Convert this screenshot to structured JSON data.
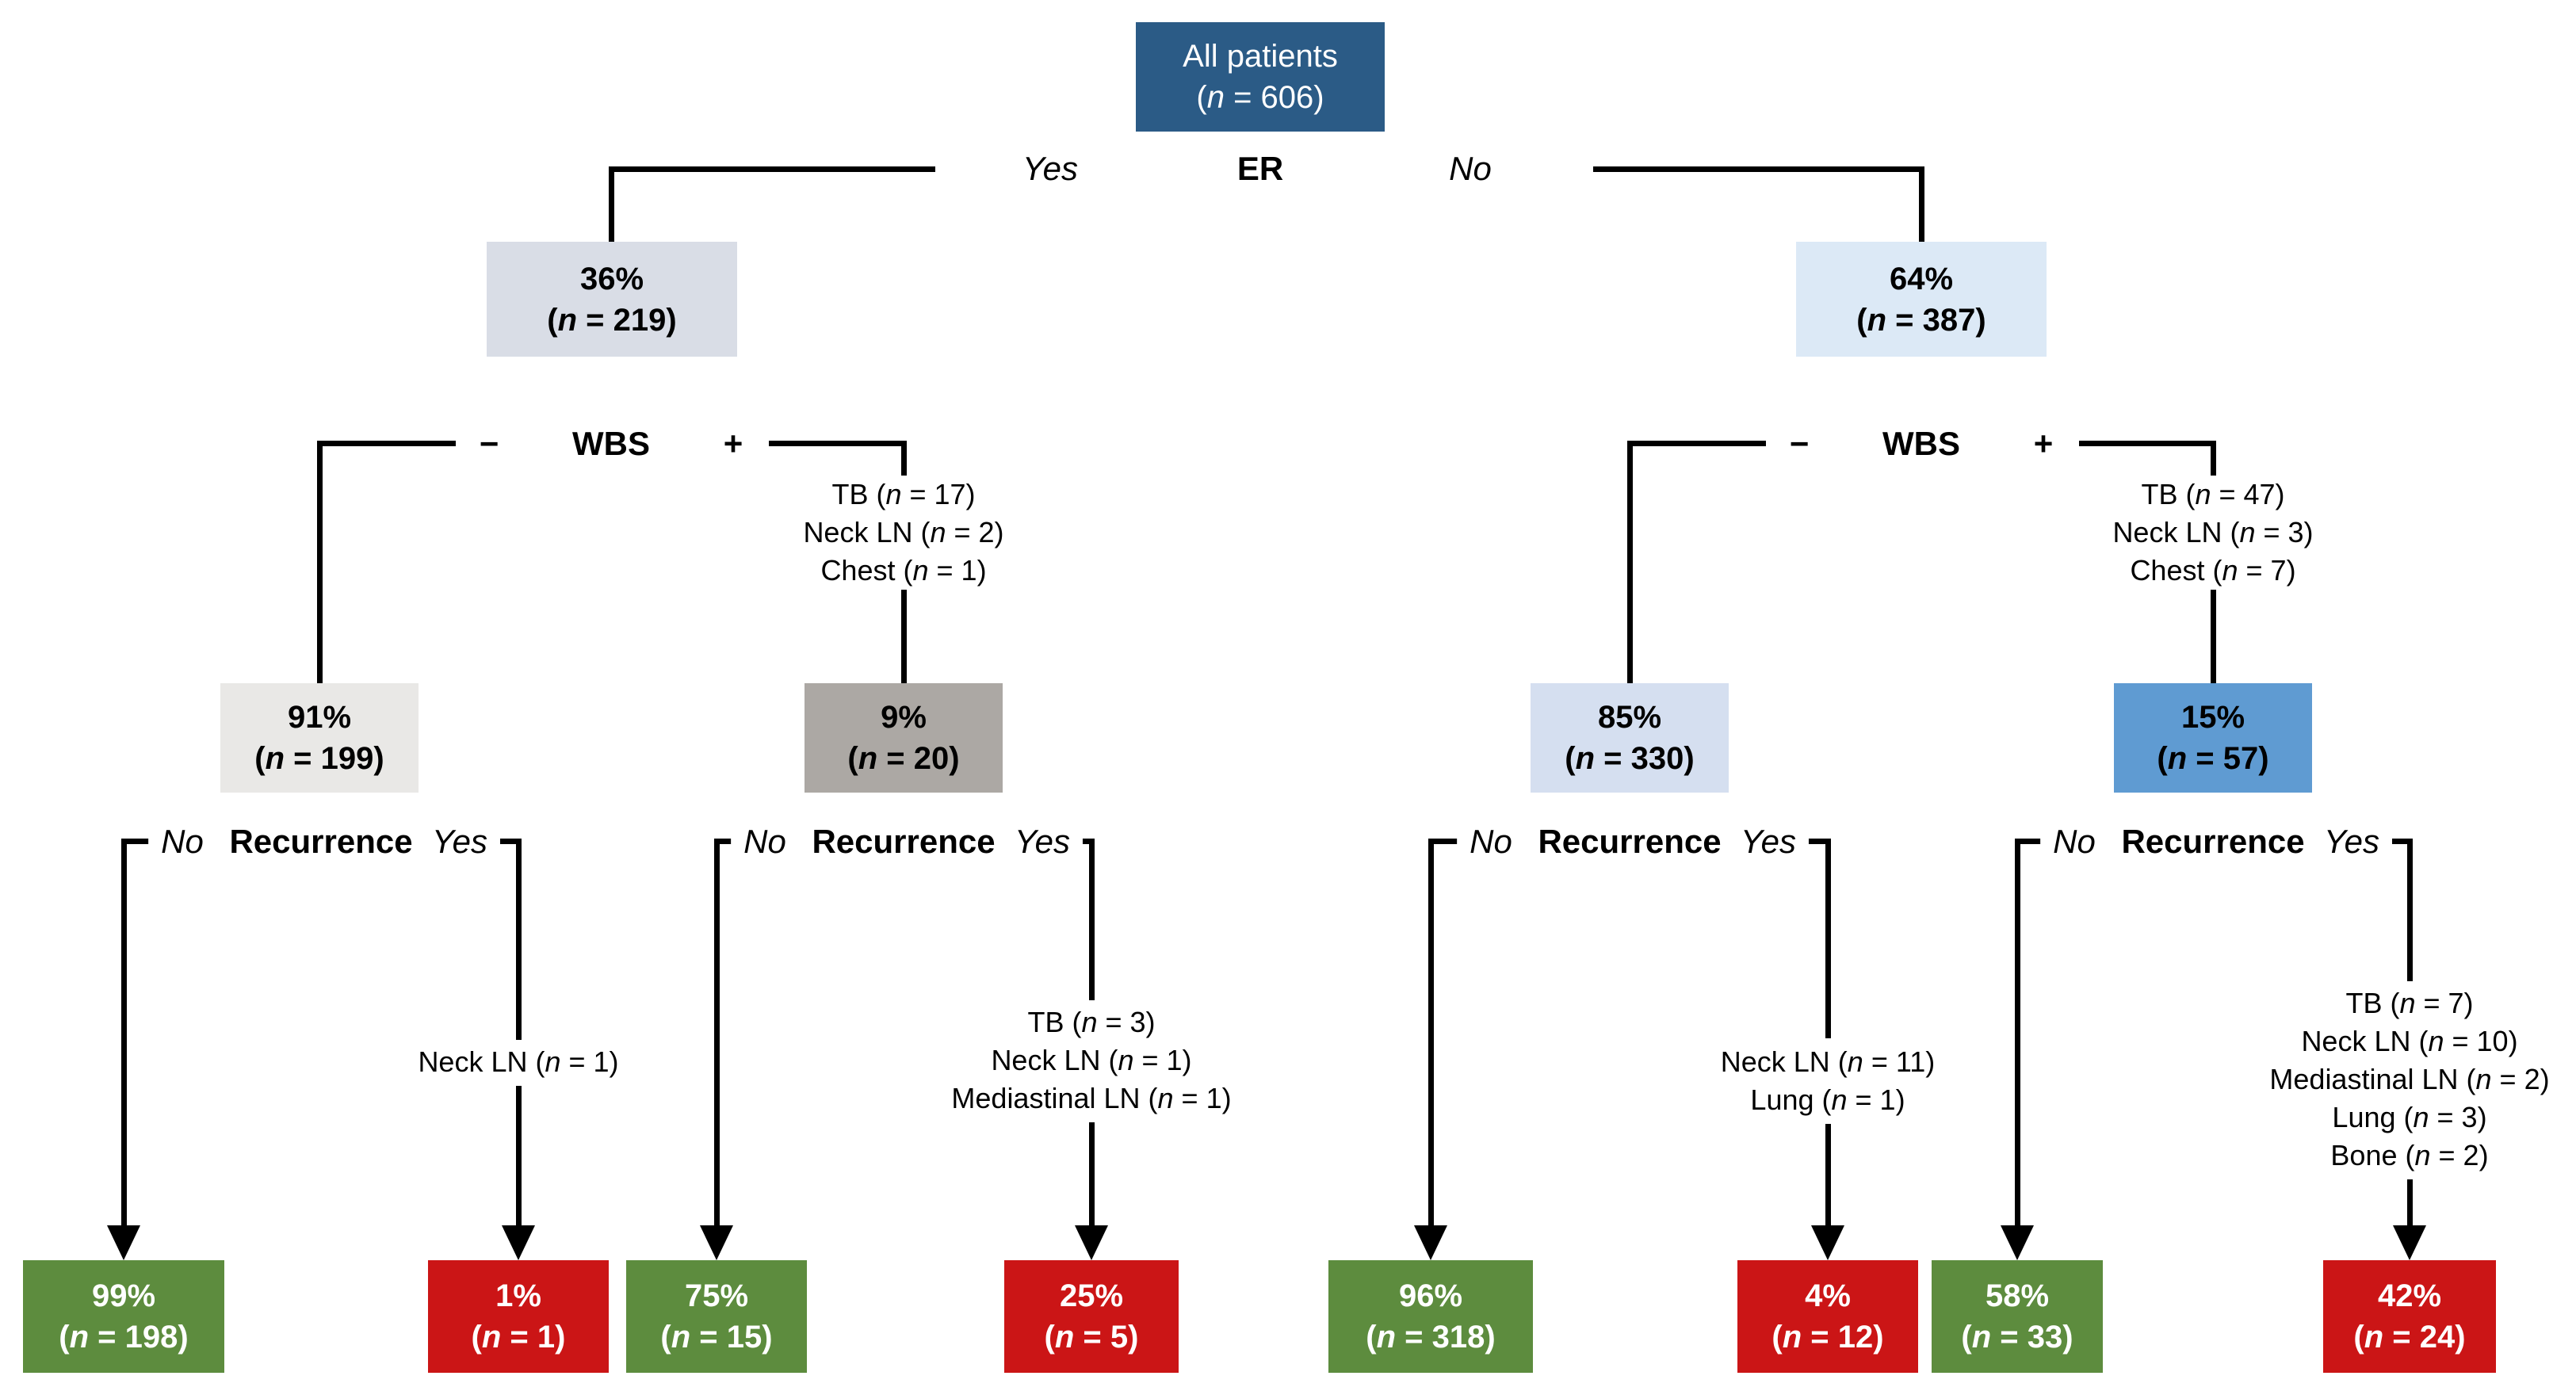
{
  "colors": {
    "root_box": "#2b5b86",
    "er_yes_box": "#d9dde6",
    "er_no_box": "#dce9f6",
    "wbs_neg_er_yes_box": "#e9e8e6",
    "wbs_pos_er_yes_box": "#aca8a4",
    "wbs_neg_er_no_box": "#d5dff0",
    "wbs_pos_er_no_box": "#5f9bd2",
    "no_recurrence_box": "#5d8c3e",
    "recurrence_box": "#cb1516",
    "line": "#000000"
  },
  "root": {
    "title": "All patients",
    "n": "(n = 606)"
  },
  "er_split": {
    "yes": "Yes",
    "label": "ER",
    "no": "No"
  },
  "level2": [
    {
      "pct": "36%",
      "n": "(n = 219)"
    },
    {
      "pct": "64%",
      "n": "(n = 387)"
    }
  ],
  "wbs_split": {
    "minus": "−",
    "label": "WBS",
    "plus": "+"
  },
  "wbs_annotations": [
    {
      "lines": [
        "TB (n = 17)",
        "Neck LN (n = 2)",
        "Chest (n = 1)"
      ]
    },
    {
      "lines": [
        "TB (n = 47)",
        "Neck LN (n = 3)",
        "Chest (n = 7)"
      ]
    }
  ],
  "level3": [
    {
      "pct": "91%",
      "n": "(n = 199)"
    },
    {
      "pct": "9%",
      "n": "(n = 20)"
    },
    {
      "pct": "85%",
      "n": "(n = 330)"
    },
    {
      "pct": "15%",
      "n": "(n = 57)"
    }
  ],
  "recurrence_split": {
    "no": "No",
    "label": "Recurrence",
    "yes": "Yes"
  },
  "leaf_annotations": [
    {
      "lines": [
        "Neck LN (n = 1)"
      ]
    },
    {
      "lines": [
        "TB (n = 3)",
        "Neck LN (n = 1)",
        "Mediastinal LN (n = 1)"
      ]
    },
    {
      "lines": [
        "Neck LN (n = 11)",
        "Lung (n = 1)"
      ]
    },
    {
      "lines": [
        "TB (n = 7)",
        "Neck LN (n = 10)",
        "Mediastinal LN (n = 2)",
        "Lung (n = 3)",
        "Bone (n = 2)"
      ]
    }
  ],
  "leaves": [
    {
      "pct": "99%",
      "n": "(n = 198)",
      "outcome": "no-recurrence"
    },
    {
      "pct": "1%",
      "n": "(n = 1)",
      "outcome": "recurrence"
    },
    {
      "pct": "75%",
      "n": "(n = 15)",
      "outcome": "no-recurrence"
    },
    {
      "pct": "25%",
      "n": "(n = 5)",
      "outcome": "recurrence"
    },
    {
      "pct": "96%",
      "n": "(n = 318)",
      "outcome": "no-recurrence"
    },
    {
      "pct": "4%",
      "n": "(n = 12)",
      "outcome": "recurrence"
    },
    {
      "pct": "58%",
      "n": "(n = 33)",
      "outcome": "no-recurrence"
    },
    {
      "pct": "42%",
      "n": "(n = 24)",
      "outcome": "recurrence"
    }
  ]
}
